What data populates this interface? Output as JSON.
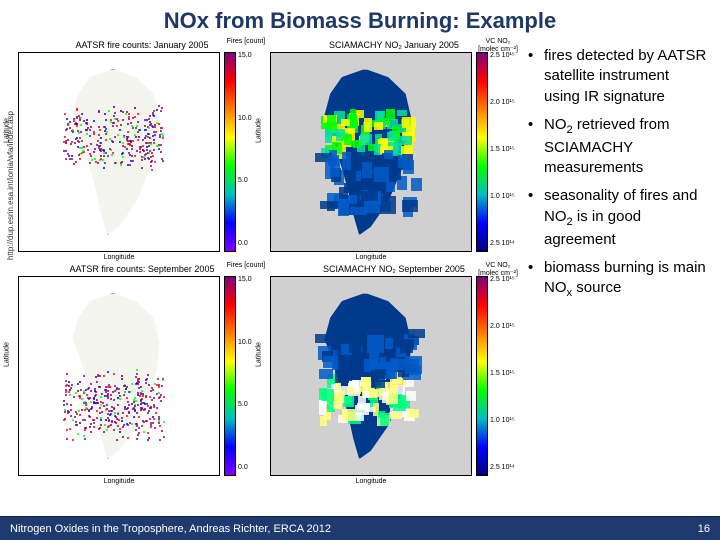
{
  "title": "NOx from Biomass Burning: Example",
  "source_url": "http://dup.esrin.esa.int/ionia/wfa/index.asp",
  "footer": {
    "left": "Nitrogen Oxides in the Troposphere, Andreas Richter, ERCA 2012",
    "page": "16"
  },
  "bullets": [
    "fires detected by AATSR satellite instrument using IR signature",
    "NO₂ retrieved from SCIAMACHY measurements",
    "seasonality of fires and NO₂ is in good agreement",
    "biomass burning is main NOₓ source"
  ],
  "maps": [
    {
      "id": "aatsr-jan",
      "title": "AATSR fire counts: January 2005",
      "type": "scatter-map",
      "xlabel": "Longitude",
      "ylabel": "Latitude",
      "colorbar": {
        "title": "Fires [count]",
        "ticks": [
          "15.0",
          "10.0",
          "5.0",
          "0.0"
        ],
        "colors": [
          "#7f007f",
          "#ff0000",
          "#ff7f00",
          "#ffff00",
          "#00ff00",
          "#00c0c0",
          "#0000ff",
          "#7f00ff"
        ]
      },
      "fires": {
        "band": {
          "top_pct": 30,
          "height_pct": 24
        },
        "n_dots": 320,
        "color_weights": {
          "#7f007f": 0.5,
          "#ff0000": 0.2,
          "#0000ff": 0.15,
          "#00ff00": 0.15
        }
      }
    },
    {
      "id": "scia-jan",
      "title": "SCIAMACHY NO₂ January 2005",
      "type": "field-map",
      "xlabel": "Longitude",
      "ylabel": "Latitude",
      "colorbar": {
        "title": "VC NO₂ [molec cm⁻²]",
        "ticks": [
          "2.5 10¹⁵",
          "2.0 10¹⁵",
          "1.5 10¹⁵",
          "1.0 10¹⁵",
          "2.5 10¹⁴"
        ],
        "colors": [
          "#7f007f",
          "#ff0000",
          "#ff7f00",
          "#ffff00",
          "#00ff00",
          "#00c0c0",
          "#0000ff",
          "#000080"
        ]
      },
      "field": {
        "bg": "#003a8c",
        "ocean": "#d0d0d0",
        "hot_band": {
          "top_pct": 28,
          "height_pct": 20,
          "colors": [
            "#ffff00",
            "#00ff00",
            "#00e0a0"
          ]
        },
        "warm_band": {
          "top_pct": 48,
          "height_pct": 30,
          "colors": [
            "#005ac8",
            "#003a8c"
          ]
        }
      }
    },
    {
      "id": "aatsr-sep",
      "title": "AATSR fire counts: September 2005",
      "type": "scatter-map",
      "xlabel": "Longitude",
      "ylabel": "Latitude",
      "colorbar": {
        "title": "Fires [count]",
        "ticks": [
          "15.0",
          "10.0",
          "5.0",
          "0.0"
        ],
        "colors": [
          "#7f007f",
          "#ff0000",
          "#ff7f00",
          "#ffff00",
          "#00ff00",
          "#00c0c0",
          "#0000ff",
          "#7f00ff"
        ]
      },
      "fires": {
        "band": {
          "top_pct": 50,
          "height_pct": 28
        },
        "n_dots": 360,
        "color_weights": {
          "#7f007f": 0.55,
          "#ff0000": 0.15,
          "#0000ff": 0.15,
          "#00ff00": 0.15
        }
      }
    },
    {
      "id": "scia-sep",
      "title": "SCIAMACHY NO₂ September 2005",
      "type": "field-map",
      "xlabel": "Longitude",
      "ylabel": "Latitude",
      "colorbar": {
        "title": "VC NO₂ [molec cm⁻²]",
        "ticks": [
          "2.5 10¹⁵",
          "2.0 10¹⁵",
          "1.5 10¹⁵",
          "1.0 10¹⁵",
          "2.5 10¹⁴"
        ],
        "colors": [
          "#7f007f",
          "#ff0000",
          "#ff7f00",
          "#ffff00",
          "#00ff00",
          "#00c0c0",
          "#0000ff",
          "#000080"
        ]
      },
      "field": {
        "bg": "#003a8c",
        "ocean": "#d0d0d0",
        "hot_band": {
          "top_pct": 48,
          "height_pct": 22,
          "colors": [
            "#ffffff",
            "#ffff80",
            "#00ff80"
          ]
        },
        "warm_band": {
          "top_pct": 26,
          "height_pct": 22,
          "colors": [
            "#005ac8",
            "#003a8c"
          ]
        }
      }
    }
  ]
}
